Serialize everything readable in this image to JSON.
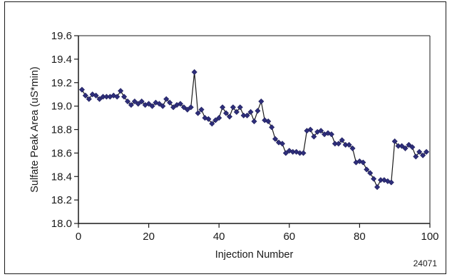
{
  "chart_data": {
    "type": "line",
    "title": "",
    "xlabel": "Injection Number",
    "ylabel": "Sulfate Peak Area (uS*min)",
    "xlim": [
      0,
      100
    ],
    "ylim": [
      18.0,
      19.6
    ],
    "x_ticks": [
      0,
      20,
      40,
      60,
      80,
      100
    ],
    "y_ticks": [
      18.0,
      18.2,
      18.4,
      18.6,
      18.8,
      19.0,
      19.2,
      19.4,
      19.6
    ],
    "x_tick_labels": [
      "0",
      "20",
      "40",
      "60",
      "80",
      "100"
    ],
    "y_tick_labels": [
      "18.0",
      "18.2",
      "18.4",
      "18.6",
      "18.8",
      "19.0",
      "19.2",
      "19.4",
      "19.6"
    ],
    "grid": false,
    "legend": "none",
    "marker": "diamond",
    "series": [
      {
        "color": "#2e2e7a",
        "line_color": "#1a1a1a",
        "x": [
          1,
          2,
          3,
          4,
          5,
          6,
          7,
          8,
          9,
          10,
          11,
          12,
          13,
          14,
          15,
          16,
          17,
          18,
          19,
          20,
          21,
          22,
          23,
          24,
          25,
          26,
          27,
          28,
          29,
          30,
          31,
          32,
          33,
          34,
          35,
          36,
          37,
          38,
          39,
          40,
          41,
          42,
          43,
          44,
          45,
          46,
          47,
          48,
          49,
          50,
          51,
          52,
          53,
          54,
          55,
          56,
          57,
          58,
          59,
          60,
          61,
          62,
          63,
          64,
          65,
          66,
          67,
          68,
          69,
          70,
          71,
          72,
          73,
          74,
          75,
          76,
          77,
          78,
          79,
          80,
          81,
          82,
          83,
          84,
          85,
          86,
          87,
          88,
          89,
          90,
          91,
          92,
          93,
          94,
          95,
          96,
          97,
          98,
          99
        ],
        "y": [
          19.14,
          19.09,
          19.06,
          19.1,
          19.09,
          19.06,
          19.08,
          19.08,
          19.08,
          19.09,
          19.08,
          19.13,
          19.08,
          19.04,
          19.01,
          19.04,
          19.02,
          19.04,
          19.01,
          19.02,
          19.0,
          19.03,
          19.02,
          19.0,
          19.06,
          19.03,
          18.99,
          19.01,
          19.02,
          18.99,
          18.97,
          18.99,
          19.29,
          18.94,
          18.97,
          18.9,
          18.89,
          18.85,
          18.88,
          18.9,
          18.99,
          18.94,
          18.91,
          18.99,
          18.95,
          18.99,
          18.92,
          18.92,
          18.95,
          18.87,
          18.96,
          19.04,
          18.88,
          18.87,
          18.82,
          18.72,
          18.69,
          18.68,
          18.6,
          18.62,
          18.61,
          18.61,
          18.6,
          18.6,
          18.79,
          18.8,
          18.74,
          18.78,
          18.79,
          18.76,
          18.77,
          18.76,
          18.68,
          18.68,
          18.71,
          18.67,
          18.67,
          18.64,
          18.52,
          18.53,
          18.52,
          18.46,
          18.43,
          18.38,
          18.31,
          18.37,
          18.37,
          18.36,
          18.35,
          18.7,
          18.66,
          18.66,
          18.64,
          18.67,
          18.65,
          18.57,
          18.61,
          18.58,
          18.61
        ]
      }
    ],
    "annotations": [
      "24071"
    ]
  }
}
